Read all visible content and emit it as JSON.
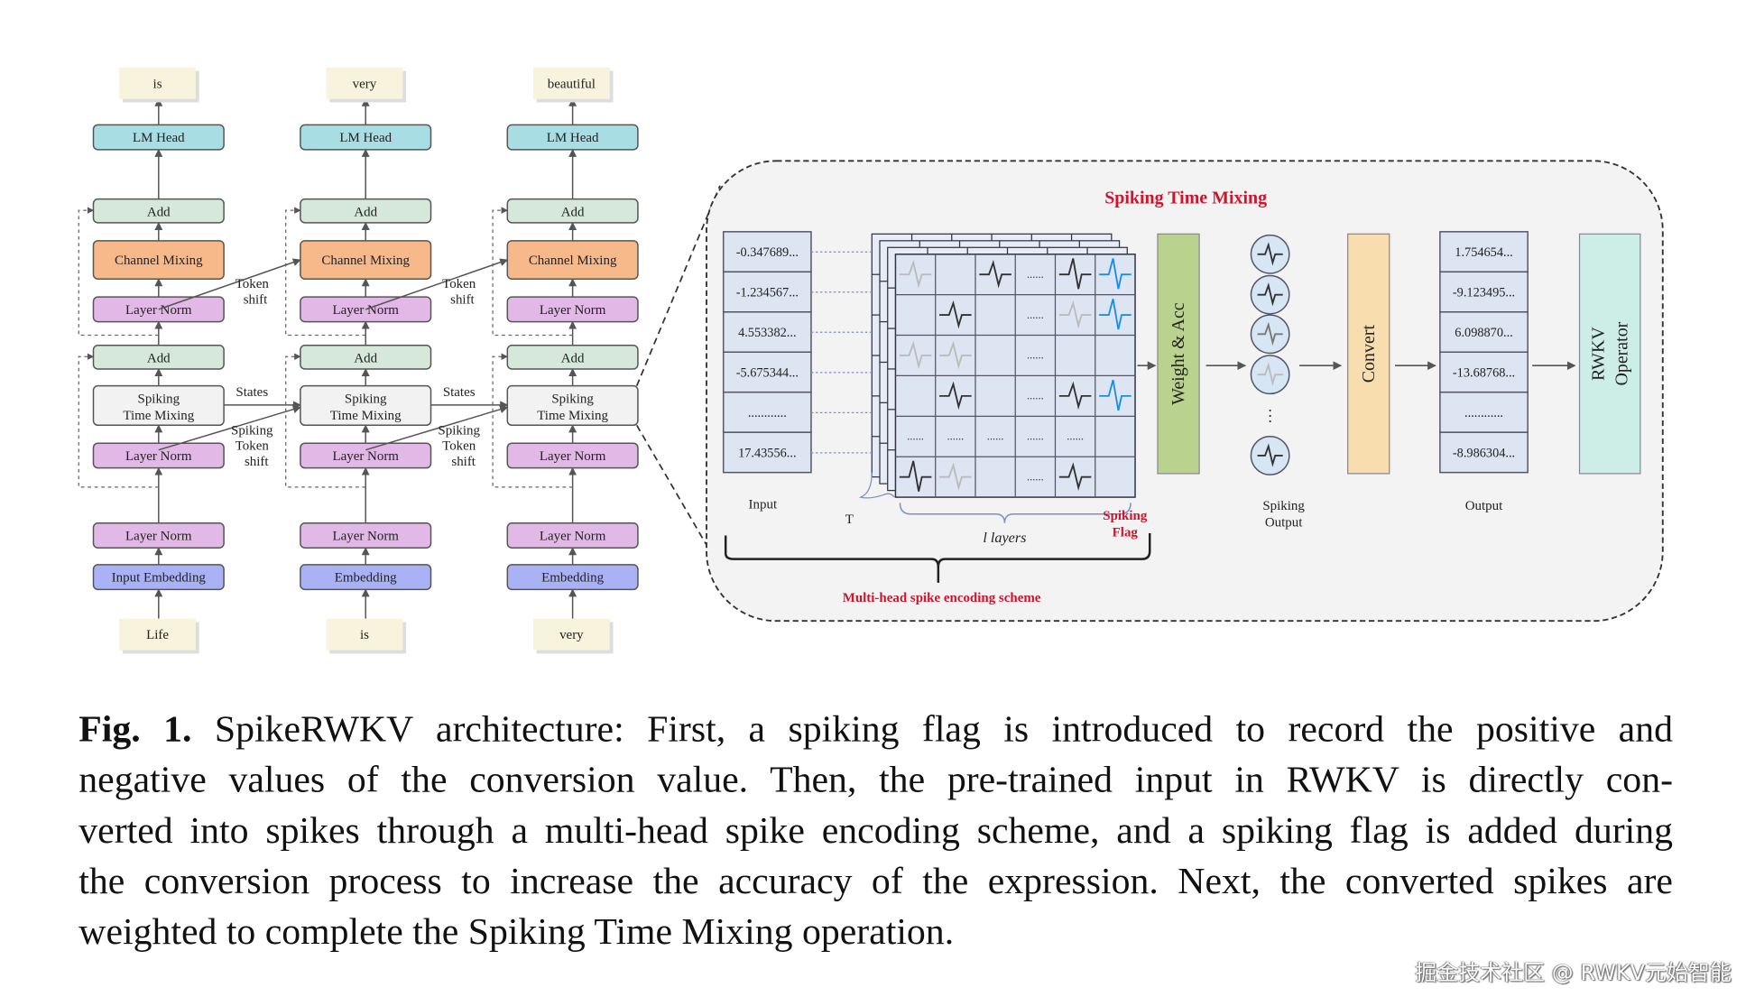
{
  "colors": {
    "lm_head": "#a8dde3",
    "add": "#d5e8da",
    "channel_mixing": "#f7b98a",
    "layer_norm": "#e2b8e6",
    "time_mixing": "#f2f2f2",
    "embedding": "#a8b2f5",
    "token": "#f7f3dc",
    "accent_red": "#d0142c",
    "spike_blue": "#1e8fe0",
    "weight_acc": "#b9d38f",
    "convert": "#f8deae",
    "rwkv_operator": "#cdeee6",
    "cell": "#dde5f3"
  },
  "left": {
    "columns": [
      {
        "output_token": "is",
        "input_token": "Life",
        "embedding": "Input Embedding"
      },
      {
        "output_token": "very",
        "input_token": "is",
        "embedding": "Embedding"
      },
      {
        "output_token": "beautiful",
        "input_token": "very",
        "embedding": "Embedding"
      }
    ],
    "lm_head": "LM Head",
    "add": "Add",
    "channel_mixing": "Channel Mixing",
    "layer_norm": "Layer Norm",
    "time_mixing": [
      "Spiking",
      "Time Mixing"
    ],
    "token_shift": [
      "Token",
      "shift"
    ],
    "states": "States",
    "spiking_token_shift": [
      "Spiking",
      "Token",
      "shift"
    ]
  },
  "right": {
    "title": "Spiking Time Mixing",
    "input_values": [
      "-0.347689...",
      "-1.234567...",
      "4.553382...",
      "-5.675344...",
      "............",
      "17.43556..."
    ],
    "input_label": "Input",
    "t_label": "T",
    "layers_label": "l layers",
    "spiking_flag": [
      "Spiking",
      "Flag"
    ],
    "grid_cells": [
      [
        "light",
        "",
        "dark",
        "dots",
        "darkbig",
        "blue"
      ],
      [
        "",
        "dark",
        "",
        "dots",
        "light",
        "blue"
      ],
      [
        "light",
        "light",
        "",
        "dots",
        "",
        ""
      ],
      [
        "",
        "dark",
        "",
        "dots",
        "dark",
        "blue"
      ],
      [
        "dots",
        "dots",
        "dots",
        "dots",
        "dots",
        ""
      ],
      [
        "darkbig",
        "light",
        "",
        "dots",
        "dark",
        ""
      ]
    ],
    "weight_acc": "Weight & Acc",
    "spiking_output_circles": [
      "dark",
      "dark",
      "mid",
      "light",
      "dark"
    ],
    "spiking_output_label": [
      "Spiking",
      "Output"
    ],
    "convert": "Convert",
    "output_values": [
      "1.754654...",
      "-9.123495...",
      "6.098870...",
      "-13.68768...",
      "............",
      "-8.986304..."
    ],
    "output_label": "Output",
    "rwkv_operator": [
      "RWKV",
      "Operator"
    ],
    "scheme_label": "Multi-head spike encoding scheme"
  },
  "caption": {
    "fig_label": "Fig. 1.",
    "lines": [
      " SpikeRWKV architecture: First, a spiking flag is introduced to record the positive and",
      "negative values of the conversion value. Then, the pre-trained input in RWKV is directly con-",
      "verted into spikes through a multi-head spike encoding scheme, and a spiking flag is added during",
      "the conversion process to increase the accuracy of the expression. Next, the converted spikes are",
      "weighted to complete the Spiking Time Mixing operation."
    ]
  },
  "watermark": "掘金技术社区 @ RWKV元始智能"
}
